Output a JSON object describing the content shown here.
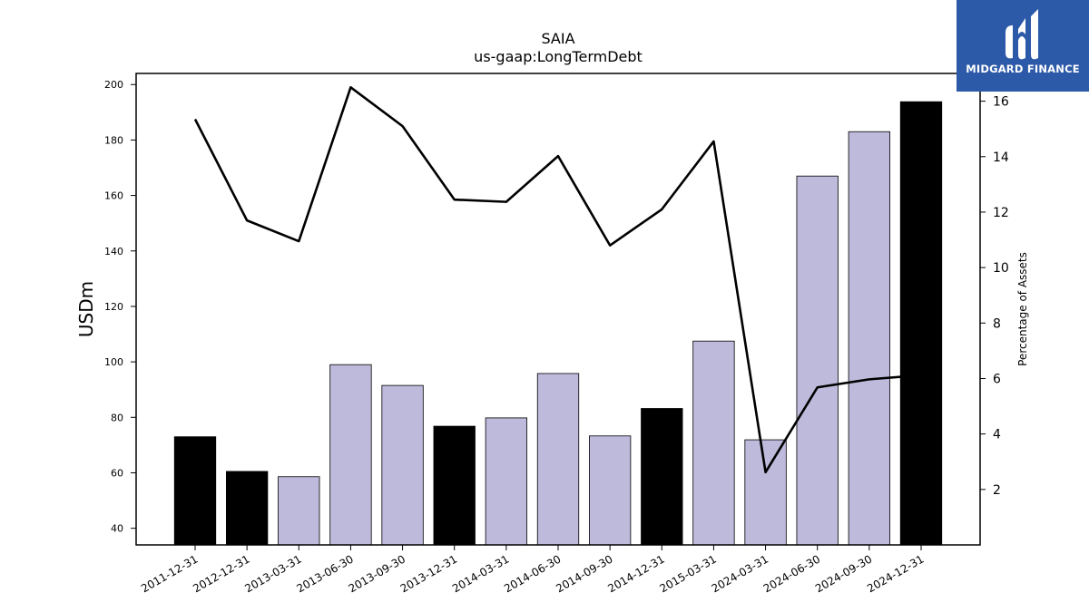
{
  "brand": {
    "name": "MIDGARD FINANCE",
    "bg": "#2d5aa8"
  },
  "chart_data": {
    "type": "bar",
    "title": "SAIA",
    "subtitle": "us-gaap:LongTermDebt",
    "ylabel": "USDm",
    "y2label": "Percentage of Assets",
    "ylim": [
      34,
      204
    ],
    "y2lim": [
      0.0,
      17.0
    ],
    "yticks": [
      40,
      60,
      80,
      100,
      120,
      140,
      160,
      180,
      200
    ],
    "y2ticks": [
      2,
      4,
      6,
      8,
      10,
      12,
      14,
      16
    ],
    "categories": [
      "2011-12-31",
      "2012-12-31",
      "2013-03-31",
      "2013-06-30",
      "2013-09-30",
      "2013-12-31",
      "2014-03-31",
      "2014-06-30",
      "2014-09-30",
      "2014-12-31",
      "2015-03-31",
      "2024-03-31",
      "2024-06-30",
      "2024-09-30",
      "2024-12-31"
    ],
    "series": [
      {
        "type": "bar",
        "values": [
          73.0,
          60.5,
          58.6,
          99.0,
          91.5,
          76.8,
          79.8,
          95.8,
          73.3,
          83.2,
          107.5,
          71.9,
          167.0,
          183.0,
          193.8
        ],
        "fill_colors": [
          "#000000",
          "#000000",
          "#bdbadb",
          "#bdbadb",
          "#bdbadb",
          "#000000",
          "#bdbadb",
          "#bdbadb",
          "#bdbadb",
          "#000000",
          "#bdbadb",
          "#bdbadb",
          "#bdbadb",
          "#bdbadb",
          "#000000"
        ]
      },
      {
        "type": "line",
        "axis": "right",
        "values": [
          15.35,
          11.7,
          10.95,
          16.5,
          15.1,
          12.45,
          12.37,
          14.02,
          10.8,
          12.1,
          14.55,
          2.62,
          5.68,
          5.97,
          6.12
        ]
      }
    ],
    "grid": false
  }
}
